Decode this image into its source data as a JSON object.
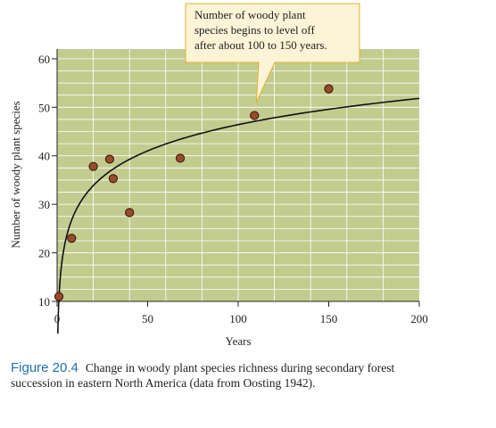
{
  "chart_data": {
    "type": "scatter",
    "title": "",
    "xlabel": "Years",
    "ylabel": "Number of woody plant species",
    "xlim": [
      0,
      200
    ],
    "ylim": [
      10,
      62
    ],
    "xticks": [
      0,
      50,
      100,
      150,
      200
    ],
    "yticks": [
      10,
      20,
      30,
      40,
      50,
      60
    ],
    "grid": true,
    "plot_background": "#c3cc8f",
    "grid_color": "#ffffff",
    "point_color": "#9b4a2b",
    "curve_color": "#111111",
    "points": [
      {
        "x": 1,
        "y": 11
      },
      {
        "x": 8,
        "y": 23
      },
      {
        "x": 20,
        "y": 37.8
      },
      {
        "x": 29,
        "y": 39.3
      },
      {
        "x": 31,
        "y": 35.3
      },
      {
        "x": 40,
        "y": 28.3
      },
      {
        "x": 68,
        "y": 39.5
      },
      {
        "x": 109,
        "y": 48.3
      },
      {
        "x": 150,
        "y": 53.8
      }
    ],
    "trend_curve": {
      "type": "logarithmic",
      "a": 10.5,
      "b": 7.8,
      "x_range": [
        0.4,
        200
      ]
    },
    "annotation": {
      "lines": [
        "Number of woody plant",
        "species begins to level off",
        "after about 100 to 150 years."
      ],
      "points_to": {
        "x": 110,
        "y": 51
      },
      "box_fill": "#fdf3d6",
      "box_stroke": "#e0b030"
    }
  },
  "caption": {
    "label": "Figure 20.4",
    "text": "Change in woody plant species richness during secondary forest succession in eastern North America (data from Oosting 1942)."
  }
}
